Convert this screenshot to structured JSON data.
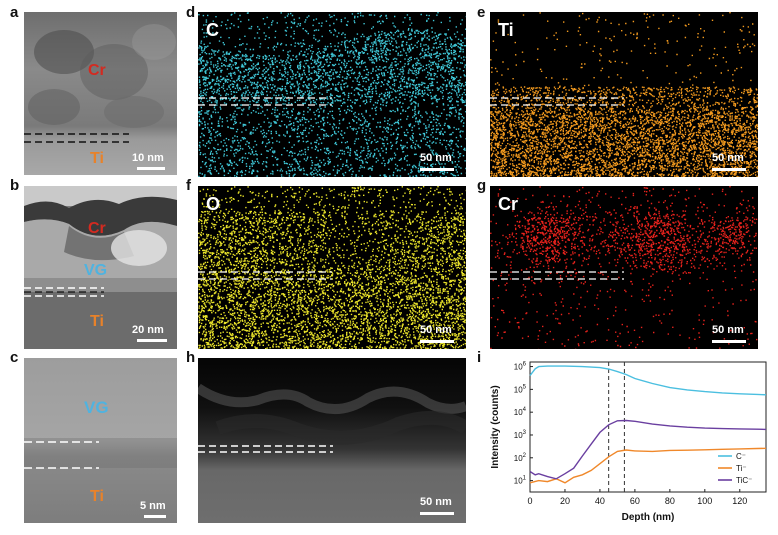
{
  "panels": {
    "a": {
      "letter": "a",
      "labels": [
        "Cr",
        "Ti"
      ],
      "scale": "10 nm"
    },
    "b": {
      "letter": "b",
      "labels": [
        "Cr",
        "VG",
        "Ti"
      ],
      "scale": "20 nm"
    },
    "c": {
      "letter": "c",
      "labels": [
        "VG",
        "Ti"
      ],
      "scale": "5 nm"
    },
    "d": {
      "letter": "d",
      "element": "C",
      "scale": "50 nm"
    },
    "e": {
      "letter": "e",
      "element": "Ti",
      "scale": "50 nm"
    },
    "f": {
      "letter": "f",
      "element": "O",
      "scale": "50 nm"
    },
    "g": {
      "letter": "g",
      "element": "Cr",
      "scale": "50 nm"
    },
    "h": {
      "letter": "h",
      "scale": "50 nm"
    },
    "i": {
      "letter": "i"
    }
  },
  "colors": {
    "cr_label": "#d42a20",
    "ti_label": "#e8822a",
    "vg_label": "#4fb3e0",
    "map_C": "#3fc6d6",
    "map_Ti": "#f39a1e",
    "map_O": "#e9e32a",
    "map_Cr": "#e8221c",
    "series_C": "#4bbfe0",
    "series_Ti": "#f0882a",
    "series_TiC": "#6a3fa0"
  },
  "chart_data": {
    "type": "line",
    "xlabel": "Depth (nm)",
    "ylabel": "Intensity (counts)",
    "xlim": [
      0,
      135
    ],
    "ylim_log10": [
      0.5,
      6.2
    ],
    "y_scale": "log",
    "x_ticks": [
      "0",
      "20",
      "40",
      "60",
      "80",
      "100",
      "120"
    ],
    "y_ticks": [
      "10^1",
      "10^2",
      "10^3",
      "10^4",
      "10^5",
      "10^6"
    ],
    "vlines": [
      45,
      54
    ],
    "legend": {
      "position": "bottom-right",
      "entries": [
        "C⁻",
        "Ti⁻",
        "TiC⁻"
      ]
    },
    "series": [
      {
        "name": "C⁻",
        "x": [
          0,
          3,
          5,
          10,
          20,
          30,
          40,
          45,
          50,
          55,
          60,
          70,
          80,
          90,
          100,
          110,
          120,
          130,
          135
        ],
        "y": [
          400000,
          800000,
          1000000,
          1050000,
          1050000,
          1000000,
          900000,
          780000,
          600000,
          450000,
          300000,
          180000,
          120000,
          95000,
          80000,
          70000,
          64000,
          60000,
          58000
        ]
      },
      {
        "name": "Ti⁻",
        "x": [
          0,
          5,
          10,
          15,
          20,
          25,
          30,
          35,
          40,
          45,
          50,
          55,
          60,
          70,
          80,
          90,
          100,
          110,
          120,
          130,
          135
        ],
        "y": [
          8,
          10,
          9,
          12,
          8,
          14,
          18,
          28,
          55,
          110,
          190,
          220,
          200,
          190,
          210,
          215,
          225,
          235,
          245,
          255,
          260
        ]
      },
      {
        "name": "TiC⁻",
        "x": [
          0,
          3,
          5,
          10,
          15,
          20,
          25,
          30,
          35,
          40,
          45,
          50,
          55,
          60,
          70,
          80,
          90,
          100,
          110,
          120,
          130,
          135
        ],
        "y": [
          25,
          18,
          20,
          15,
          12,
          20,
          35,
          120,
          400,
          1300,
          2800,
          4200,
          4300,
          4000,
          3000,
          2500,
          2200,
          2000,
          1900,
          1850,
          1800,
          1750
        ]
      }
    ]
  }
}
